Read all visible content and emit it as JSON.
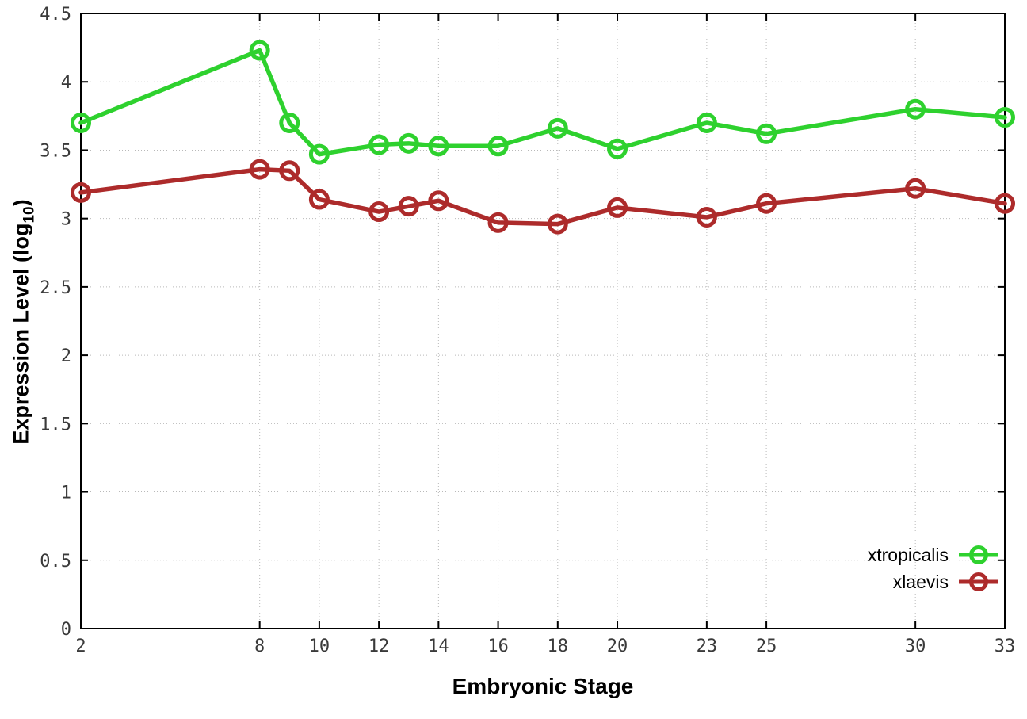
{
  "chart_data": {
    "type": "line",
    "title": "",
    "xlabel": "Embryonic Stage",
    "ylabel": "Expression Level (log10)",
    "ylabel_parts": {
      "prefix": "Expression Level (log",
      "sub": "10",
      "suffix": ")"
    },
    "xlim": [
      2,
      33
    ],
    "ylim": [
      0,
      4.5
    ],
    "x_ticks": [
      2,
      8,
      10,
      12,
      14,
      16,
      18,
      20,
      23,
      25,
      30,
      33
    ],
    "y_ticks": [
      0,
      0.5,
      1,
      1.5,
      2,
      2.5,
      3,
      3.5,
      4,
      4.5
    ],
    "y_tick_labels": [
      "0",
      "0.5",
      "1",
      "1.5",
      "2",
      "2.5",
      "3",
      "3.5",
      "4",
      "4.5"
    ],
    "grid": true,
    "grid_style": "dotted",
    "legend_position": "inside-bottom-right",
    "x": [
      2,
      8,
      9,
      10,
      12,
      13,
      14,
      16,
      18,
      20,
      23,
      25,
      30,
      33
    ],
    "series": [
      {
        "name": "xtropicalis",
        "color": "#2ed12e",
        "marker": "open-circle",
        "values": [
          3.7,
          4.23,
          3.7,
          3.47,
          3.54,
          3.55,
          3.53,
          3.53,
          3.66,
          3.51,
          3.7,
          3.62,
          3.8,
          3.74
        ]
      },
      {
        "name": "xlaevis",
        "color": "#ad2b2b",
        "marker": "open-circle",
        "values": [
          3.19,
          3.36,
          3.35,
          3.14,
          3.05,
          3.09,
          3.13,
          2.97,
          2.96,
          3.08,
          3.01,
          3.11,
          3.22,
          3.11
        ]
      }
    ]
  },
  "colors": {
    "background": "#ffffff",
    "border": "#000000",
    "gridline": "#b9b9b9",
    "tick_label": "#3a3a3a"
  }
}
